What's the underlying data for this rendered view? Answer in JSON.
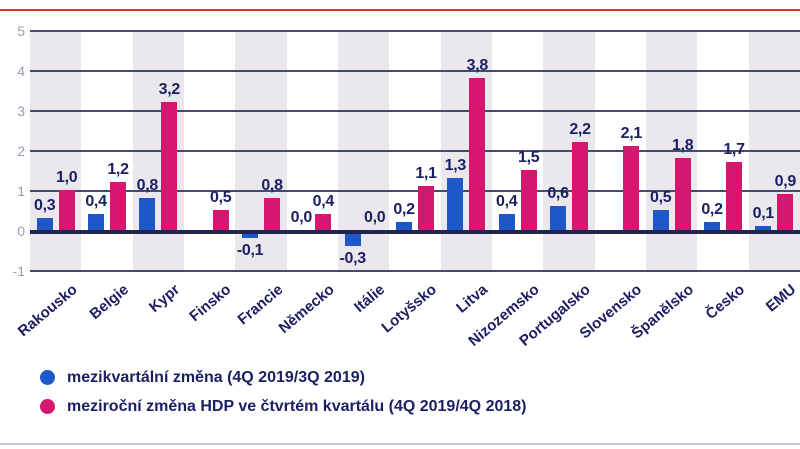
{
  "chart_data": {
    "type": "bar",
    "title": "",
    "categories": [
      "Rakousko",
      "Belgie",
      "Kypr",
      "Finsko",
      "Francie",
      "Německo",
      "Itálie",
      "Lotyšsko",
      "Litva",
      "Nizozemsko",
      "Portugalsko",
      "Slovensko",
      "Španělsko",
      "Česko",
      "EMU"
    ],
    "series": [
      {
        "name": "mezikvartální změna (4Q 2019/3Q 2019)",
        "color": "#1e57c9",
        "values": [
          0.3,
          0.4,
          0.8,
          null,
          -0.1,
          0.0,
          -0.3,
          0.2,
          1.3,
          0.4,
          0.6,
          null,
          0.5,
          0.2,
          0.1
        ]
      },
      {
        "name": "meziroční změna HDP ve čtvrtém kvartálu (4Q 2019/4Q 2018)",
        "color": "#d6176f",
        "values": [
          1.0,
          1.2,
          3.2,
          0.5,
          0.8,
          0.4,
          0.0,
          1.1,
          3.8,
          1.5,
          2.2,
          2.1,
          1.8,
          1.7,
          0.9
        ]
      }
    ],
    "xlabel": "",
    "ylabel": "",
    "ylim": [
      -1,
      5
    ],
    "y_ticks": [
      5,
      4,
      3,
      2,
      1,
      0,
      -1
    ],
    "grid": true,
    "column_bands": true,
    "decimal_separator": ",",
    "value_labels_shown": true,
    "legend_position": "bottom-left"
  },
  "legend": {
    "items": [
      {
        "label": "mezikvartální změna (4Q 2019/3Q 2019)",
        "color": "#1e57c9"
      },
      {
        "label": "meziroční změna HDP ve čtvrtém kvartálu (4Q 2019/4Q 2018)",
        "color": "#d6176f"
      }
    ]
  },
  "colors": {
    "top_rule": "#e2332b",
    "bottom_rule": "#c8c8d8",
    "grid_line": "#474a6b",
    "zero_line": "#20244f",
    "band": "#eae8ed",
    "tick_label": "#9b9dae",
    "text": "#1c2063"
  }
}
